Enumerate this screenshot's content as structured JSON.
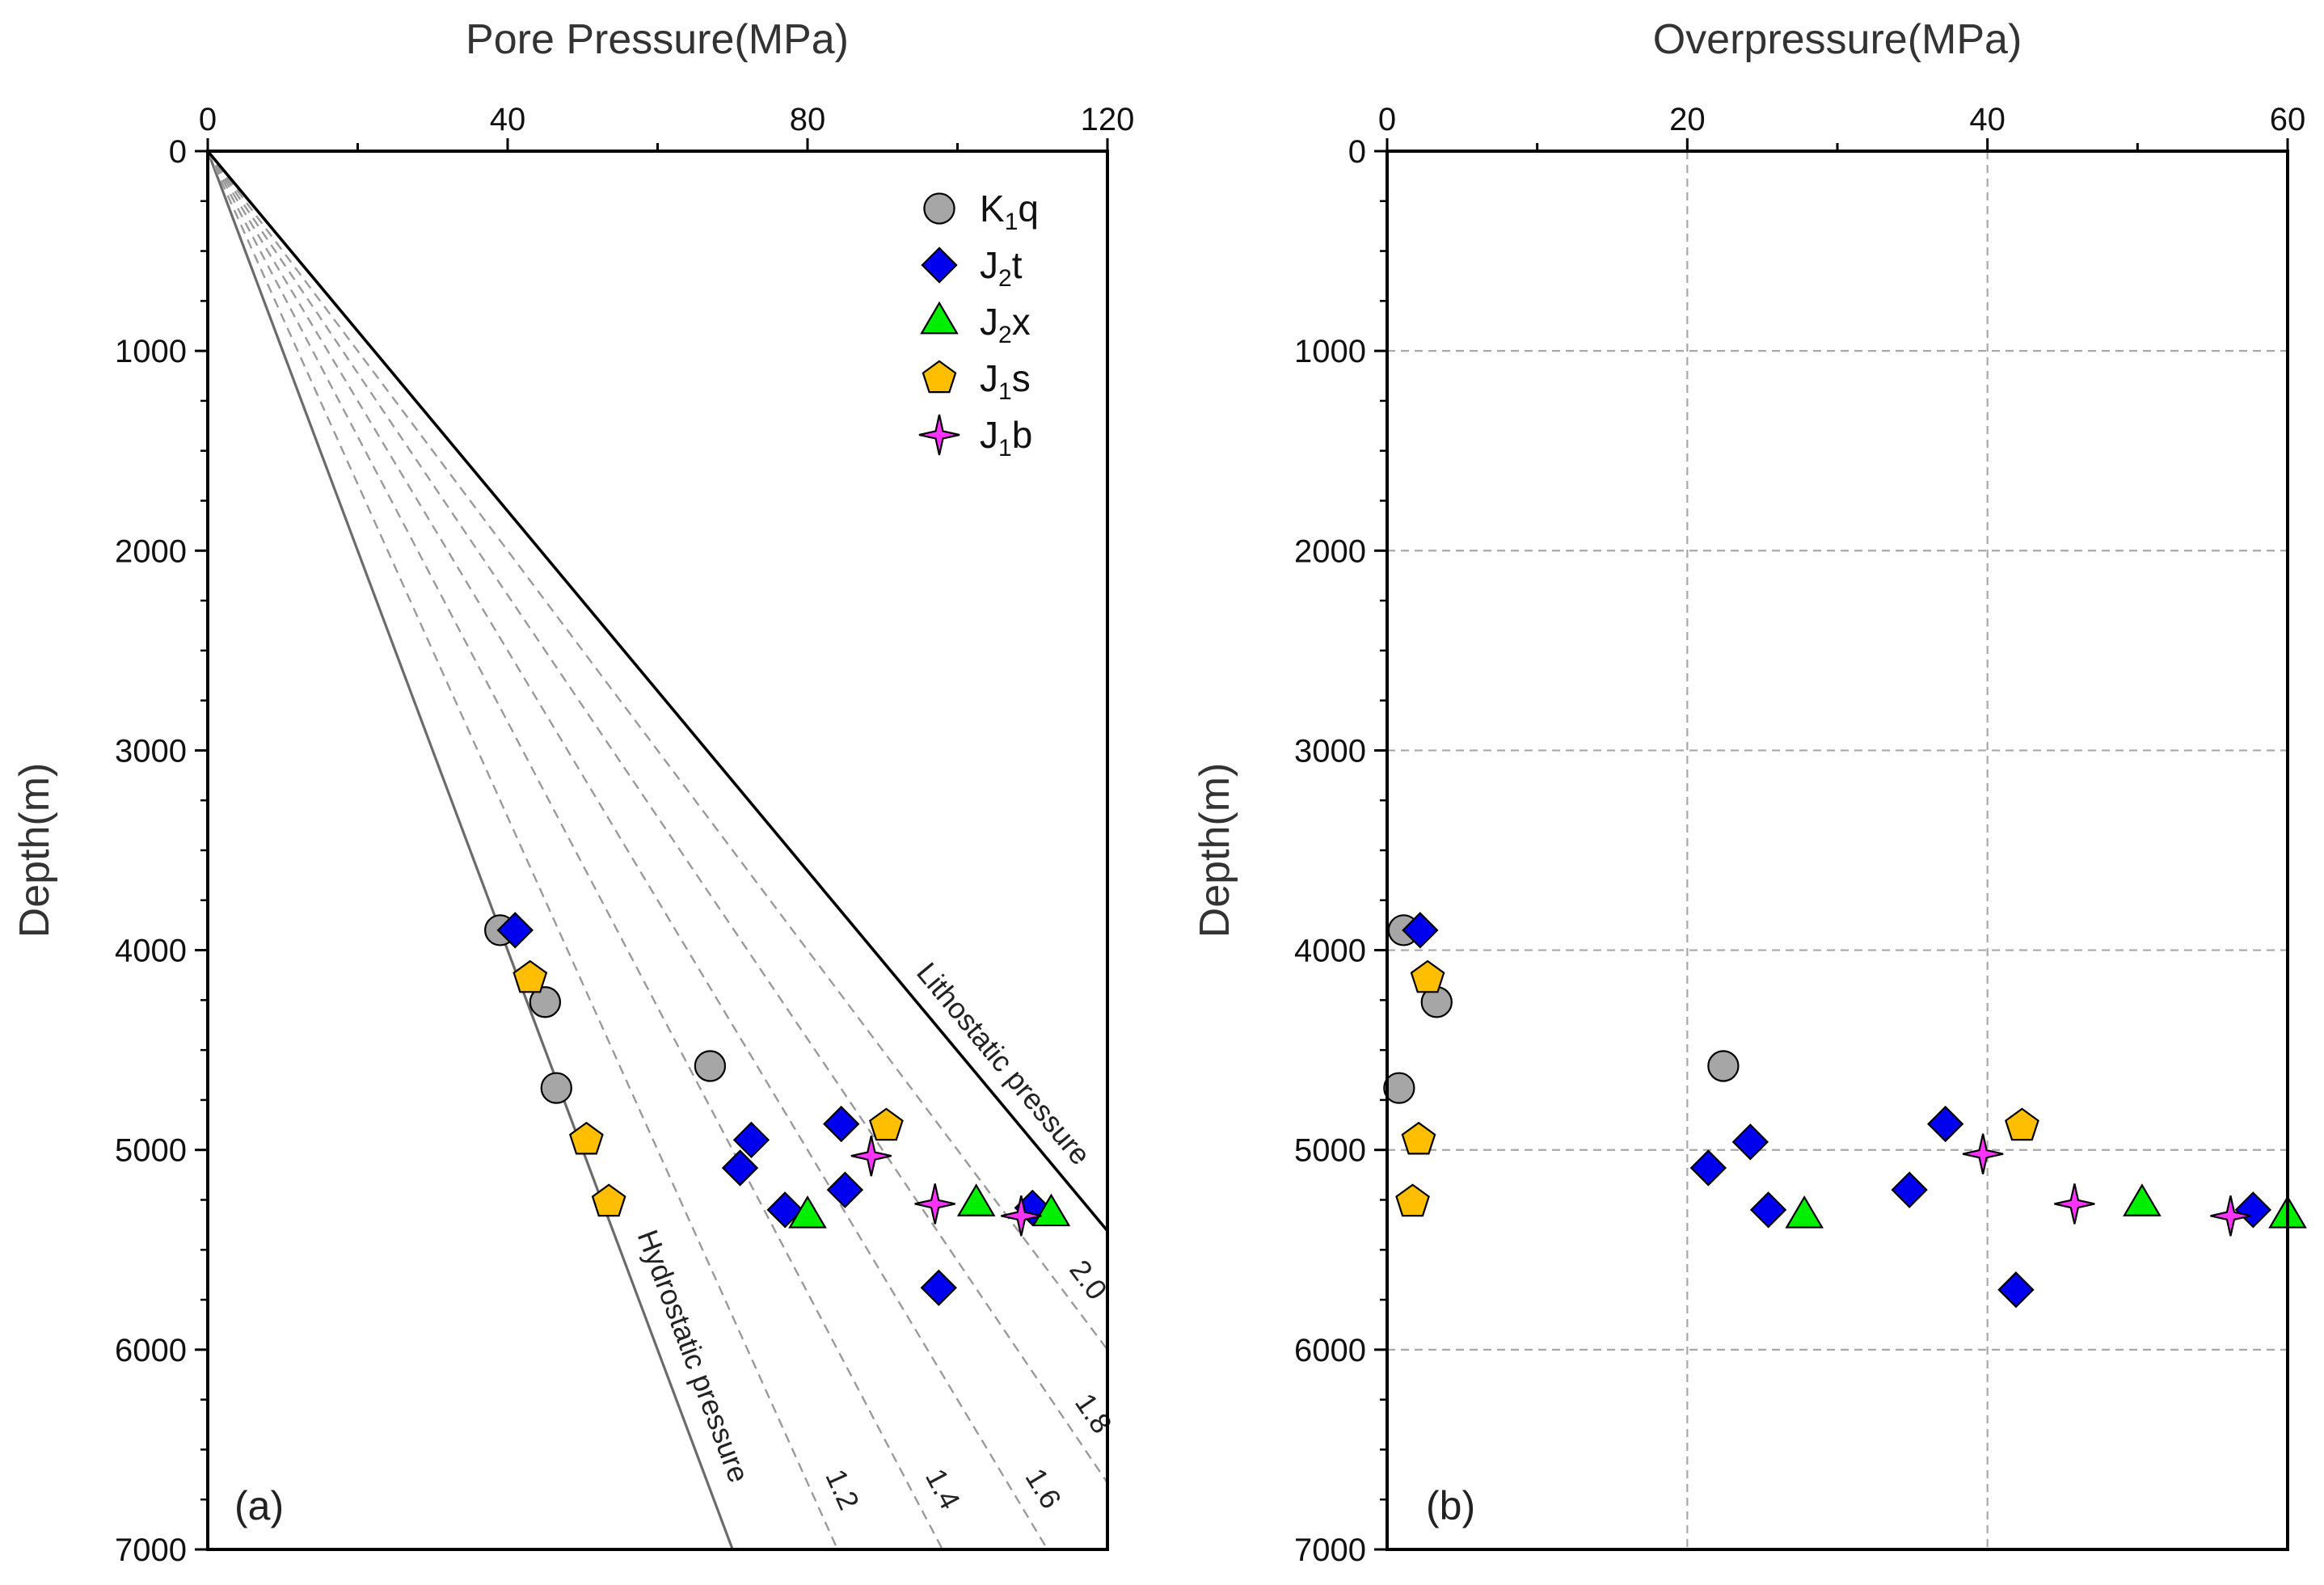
{
  "chart_data": [
    {
      "type": "scatter",
      "panel_label": "(a)",
      "title": "",
      "xlabel": "Pore Pressure(MPa)",
      "ylabel": "Depth(m)",
      "xlim": [
        0,
        120
      ],
      "ylim": [
        0,
        7000
      ],
      "y_inverted": true,
      "x_axis_position": "top",
      "x_major_ticks": [
        0,
        40,
        80,
        120
      ],
      "x_tick_labels": [
        "0",
        "40",
        "80",
        "120"
      ],
      "x_minor_ticks": [
        20,
        60,
        100
      ],
      "y_major_ticks": [
        0,
        1000,
        2000,
        3000,
        4000,
        5000,
        6000,
        7000
      ],
      "y_tick_labels": [
        "0",
        "1000",
        "2000",
        "3000",
        "4000",
        "5000",
        "6000",
        "7000"
      ],
      "grid": false,
      "legend_position": "top-right",
      "legend": [
        {
          "marker": "circle",
          "base": "K",
          "sub": "1",
          "suffix": "q",
          "color": "#a6a6a6"
        },
        {
          "marker": "diamond",
          "base": "J",
          "sub": "2",
          "suffix": "t",
          "color": "#0000ee"
        },
        {
          "marker": "triangle",
          "base": "J",
          "sub": "2",
          "suffix": "x",
          "color": "#00ee00"
        },
        {
          "marker": "pentagon",
          "base": "J",
          "sub": "1",
          "suffix": "s",
          "color": "#ffbf00"
        },
        {
          "marker": "star",
          "base": "J",
          "sub": "1",
          "suffix": "b",
          "color": "#ff33ff"
        }
      ],
      "reference_lines": [
        {
          "name": "hydrostatic",
          "label": "Hydrostatic pressure",
          "gradient_mpa_per_km": 10.0,
          "style": "solid",
          "color": "#6b6b6b"
        },
        {
          "name": "ratio-1.2",
          "label": "1.2",
          "gradient_mpa_per_km": 12.0,
          "style": "dashed",
          "color": "#9a9a9a"
        },
        {
          "name": "ratio-1.4",
          "label": "1.4",
          "gradient_mpa_per_km": 14.0,
          "style": "dashed",
          "color": "#9a9a9a"
        },
        {
          "name": "ratio-1.6",
          "label": "1.6",
          "gradient_mpa_per_km": 16.0,
          "style": "dashed",
          "color": "#9a9a9a"
        },
        {
          "name": "ratio-1.8",
          "label": "1.8",
          "gradient_mpa_per_km": 18.0,
          "style": "dashed",
          "color": "#9a9a9a"
        },
        {
          "name": "ratio-2.0",
          "label": "2.0",
          "gradient_mpa_per_km": 20.0,
          "style": "dashed",
          "color": "#9a9a9a"
        },
        {
          "name": "lithostatic",
          "label": "Lithostatic pressure",
          "gradient_mpa_per_km": 22.2,
          "style": "solid",
          "color": "#000000"
        }
      ],
      "series": [
        {
          "name": "K1q",
          "marker": "circle",
          "color": "#a6a6a6",
          "points": [
            [
              39,
              3900
            ],
            [
              45,
              4260
            ],
            [
              46.5,
              4690
            ],
            [
              67,
              4580
            ]
          ]
        },
        {
          "name": "J2t",
          "marker": "diamond",
          "color": "#0000ee",
          "points": [
            [
              41,
              3900
            ],
            [
              72.5,
              4950
            ],
            [
              71,
              5090
            ],
            [
              77,
              5300
            ],
            [
              84.5,
              4870
            ],
            [
              85,
              5200
            ],
            [
              97.5,
              5690
            ],
            [
              110,
              5290
            ]
          ]
        },
        {
          "name": "J2x",
          "marker": "triangle",
          "color": "#00ee00",
          "points": [
            [
              80,
              5330
            ],
            [
              102.5,
              5270
            ],
            [
              112.5,
              5320
            ]
          ]
        },
        {
          "name": "J1s",
          "marker": "pentagon",
          "color": "#ffbf00",
          "points": [
            [
              43,
              4140
            ],
            [
              50.5,
              4950
            ],
            [
              53.5,
              5260
            ],
            [
              90.5,
              4880
            ]
          ]
        },
        {
          "name": "J1b",
          "marker": "star",
          "color": "#ff33ff",
          "points": [
            [
              88.5,
              5030
            ],
            [
              97,
              5270
            ],
            [
              108.5,
              5330
            ]
          ]
        }
      ]
    },
    {
      "type": "scatter",
      "panel_label": "(b)",
      "title": "",
      "xlabel": "Overpressure(MPa)",
      "ylabel": "Depth(m)",
      "xlim": [
        0,
        60
      ],
      "ylim": [
        0,
        7000
      ],
      "y_inverted": true,
      "x_axis_position": "top",
      "x_major_ticks": [
        0,
        20,
        40,
        60
      ],
      "x_tick_labels": [
        "0",
        "20",
        "40",
        "60"
      ],
      "x_minor_ticks": [
        10,
        30,
        50
      ],
      "y_major_ticks": [
        0,
        1000,
        2000,
        3000,
        4000,
        5000,
        6000,
        7000
      ],
      "y_tick_labels": [
        "0",
        "1000",
        "2000",
        "3000",
        "4000",
        "5000",
        "6000",
        "7000"
      ],
      "grid": true,
      "series": [
        {
          "name": "K1q",
          "marker": "circle",
          "color": "#a6a6a6",
          "points": [
            [
              1.1,
              3900
            ],
            [
              3.3,
              4260
            ],
            [
              0.8,
              4690
            ],
            [
              22.4,
              4580
            ]
          ]
        },
        {
          "name": "J2t",
          "marker": "diamond",
          "color": "#0000ee",
          "points": [
            [
              2.2,
              3900
            ],
            [
              24.2,
              4960
            ],
            [
              21.4,
              5090
            ],
            [
              25.4,
              5300
            ],
            [
              37.2,
              4870
            ],
            [
              34.8,
              5200
            ],
            [
              41.9,
              5700
            ],
            [
              57.7,
              5300
            ]
          ]
        },
        {
          "name": "J2x",
          "marker": "triangle",
          "color": "#00ee00",
          "points": [
            [
              27.8,
              5330
            ],
            [
              50.3,
              5270
            ],
            [
              60,
              5330
            ]
          ]
        },
        {
          "name": "J1s",
          "marker": "pentagon",
          "color": "#ffbf00",
          "points": [
            [
              2.7,
              4140
            ],
            [
              2.1,
              4950
            ],
            [
              1.7,
              5260
            ],
            [
              42.3,
              4880
            ]
          ]
        },
        {
          "name": "J1b",
          "marker": "star",
          "color": "#ff33ff",
          "points": [
            [
              39.7,
              5020
            ],
            [
              45.8,
              5270
            ],
            [
              56.2,
              5330
            ]
          ]
        }
      ]
    }
  ]
}
